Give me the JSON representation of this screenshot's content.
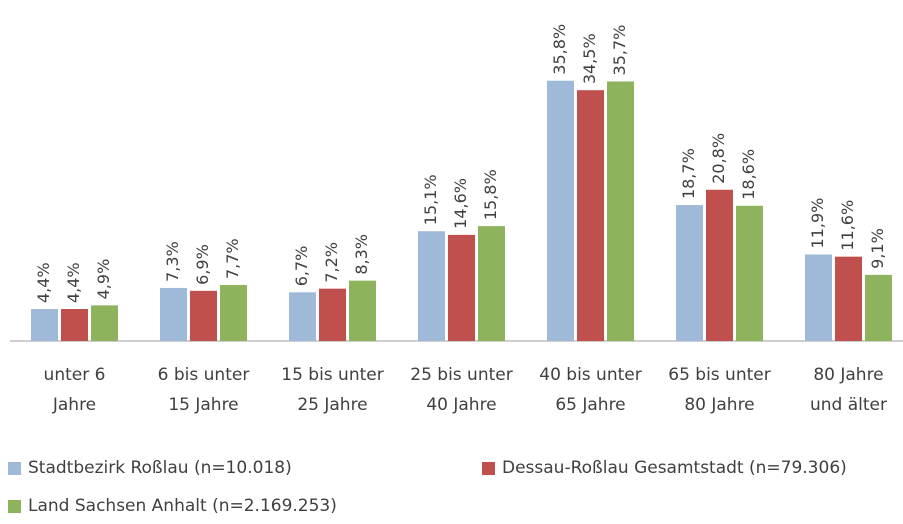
{
  "chart_data": {
    "type": "bar",
    "categories": [
      "unter 6\nJahre",
      "6 bis unter\n15 Jahre",
      "15 bis unter\n25 Jahre",
      "25 bis unter\n40 Jahre",
      "40 bis unter\n65 Jahre",
      "65 bis unter\n80 Jahre",
      "80 Jahre\nund älter"
    ],
    "series": [
      {
        "name": "Stadtbezirk Roßlau (n=10.018)",
        "color": "#9fb9d8",
        "values": [
          4.4,
          7.3,
          6.7,
          15.1,
          35.8,
          18.7,
          11.9
        ],
        "value_labels": [
          "4,4%",
          "7,3%",
          "6,7%",
          "15,1%",
          "35,8%",
          "18,7%",
          "11,9%"
        ]
      },
      {
        "name": "Dessau-Roßlau Gesamtstadt (n=79.306)",
        "color": "#c0504d",
        "values": [
          4.4,
          6.9,
          7.2,
          14.6,
          34.5,
          20.8,
          11.6
        ],
        "value_labels": [
          "4,4%",
          "6,9%",
          "7,2%",
          "14,6%",
          "34,5%",
          "20,8%",
          "11,6%"
        ]
      },
      {
        "name": "Land Sachsen Anhalt (n=2.169.253)",
        "color": "#8db45c",
        "values": [
          4.9,
          7.7,
          8.3,
          15.8,
          35.7,
          18.6,
          9.1
        ],
        "value_labels": [
          "4,9%",
          "7,7%",
          "8,3%",
          "15,8%",
          "35,7%",
          "18,6%",
          "9,1%"
        ]
      }
    ]
  }
}
